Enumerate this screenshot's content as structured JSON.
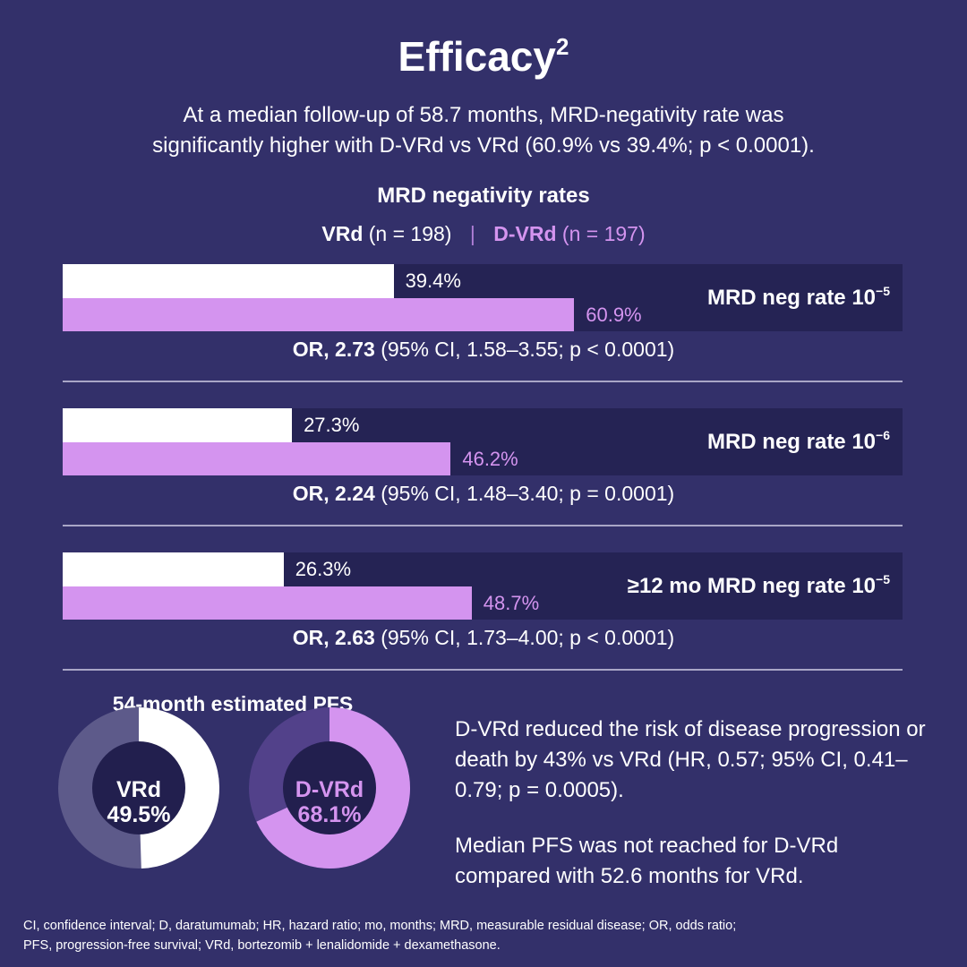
{
  "title": "Efficacy",
  "title_sup": "2",
  "subtitle": [
    "At a median follow-up of 58.7 months, MRD-negativity rate was",
    "significantly higher with D-VRd vs VRd (60.9% vs 39.4%; p < 0.0001)."
  ],
  "colors": {
    "background": "#33306a",
    "panel": "#252354",
    "vrd": "#ffffff",
    "dvrd": "#d494ef",
    "vrd_remainder": "#5d5a8a",
    "dvrd_remainder": "#52418a",
    "donut_center": "#221f4e"
  },
  "chart_data": [
    {
      "type": "bar",
      "title": "MRD negativity rates",
      "orientation": "horizontal",
      "xlim": [
        0,
        100
      ],
      "legend": [
        {
          "name": "VRd",
          "n": "(n = 198)"
        },
        {
          "name": "D-VRd",
          "n": "(n = 197)"
        }
      ],
      "groups": [
        {
          "label": "MRD neg rate 10",
          "sup": "−5",
          "values": [
            39.4,
            60.9
          ],
          "value_labels": [
            "39.4%",
            "60.9%"
          ],
          "or_bold": "OR, 2.73",
          "or_rest": " (95% CI, 1.58–3.55; p < 0.0001)"
        },
        {
          "label": "MRD neg rate 10",
          "sup": "−6",
          "values": [
            27.3,
            46.2
          ],
          "value_labels": [
            "27.3%",
            "46.2%"
          ],
          "or_bold": "OR, 2.24",
          "or_rest": " (95% CI, 1.48–3.40; p = 0.0001)"
        },
        {
          "label": "≥12 mo MRD neg rate 10",
          "sup": "−5",
          "values": [
            26.3,
            48.7
          ],
          "value_labels": [
            "26.3%",
            "48.7%"
          ],
          "or_bold": "OR, 2.63",
          "or_rest": " (95% CI, 1.73–4.00; p < 0.0001)"
        }
      ]
    },
    {
      "type": "pie",
      "title": "54-month estimated PFS",
      "donuts": [
        {
          "name": "VRd",
          "value": 49.5,
          "label": "49.5%"
        },
        {
          "name": "D-VRd",
          "value": 68.1,
          "label": "68.1%"
        }
      ]
    }
  ],
  "pfs_text": [
    "D-VRd reduced the risk of disease progression or death by 43% vs VRd (HR, 0.57; 95% CI, 0.41–0.79; p = 0.0005).",
    "Median PFS was not reached for D-VRd compared with 52.6 months for VRd."
  ],
  "footnote": [
    "CI, confidence interval; D, daratumumab; HR, hazard ratio; mo, months; MRD, measurable residual disease; OR, odds ratio;",
    "PFS, progression-free survival; VRd, bortezomib + lenalidomide + dexamethasone."
  ]
}
